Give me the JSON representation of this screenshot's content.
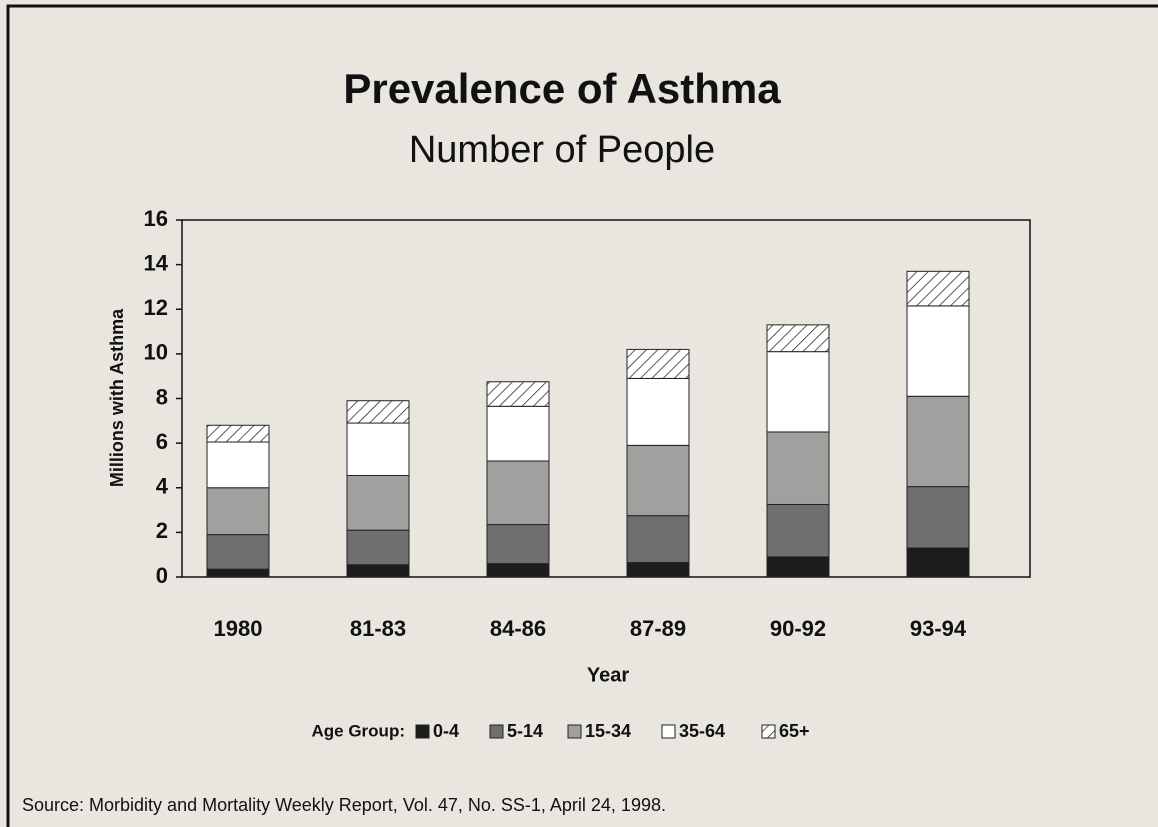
{
  "chart_data": {
    "type": "stacked-bar",
    "title": "Prevalence of Asthma",
    "subtitle": "Number of People",
    "y_label": "Millions with Asthma",
    "x_label": "Year",
    "legend_title": "Age Group:",
    "source": "Source: Morbidity and Mortality Weekly Report, Vol. 47, No. SS-1, April 24, 1998.",
    "categories": [
      "1980",
      "81-83",
      "84-86",
      "87-89",
      "90-92",
      "93-94"
    ],
    "series": [
      {
        "name": "0-4",
        "color": "#1c1c1c",
        "values": [
          0.35,
          0.55,
          0.6,
          0.65,
          0.9,
          1.3
        ]
      },
      {
        "name": "5-14",
        "color": "#6f6f6f",
        "values": [
          1.55,
          1.55,
          1.75,
          2.1,
          2.35,
          2.75
        ]
      },
      {
        "name": "15-34",
        "color": "#a0a09e",
        "values": [
          2.1,
          2.45,
          2.85,
          3.15,
          3.25,
          4.05
        ]
      },
      {
        "name": "35-64",
        "color": "#ffffff",
        "values": [
          2.05,
          2.35,
          2.45,
          3.0,
          3.6,
          4.05
        ]
      },
      {
        "name": "65+",
        "color": "#ffffff",
        "hatch": true,
        "values": [
          0.75,
          1.0,
          1.1,
          1.3,
          1.2,
          1.55
        ]
      }
    ],
    "ylim": [
      0,
      16
    ],
    "yticks": [
      0,
      2,
      4,
      6,
      8,
      10,
      12,
      14,
      16
    ],
    "grid": false
  }
}
